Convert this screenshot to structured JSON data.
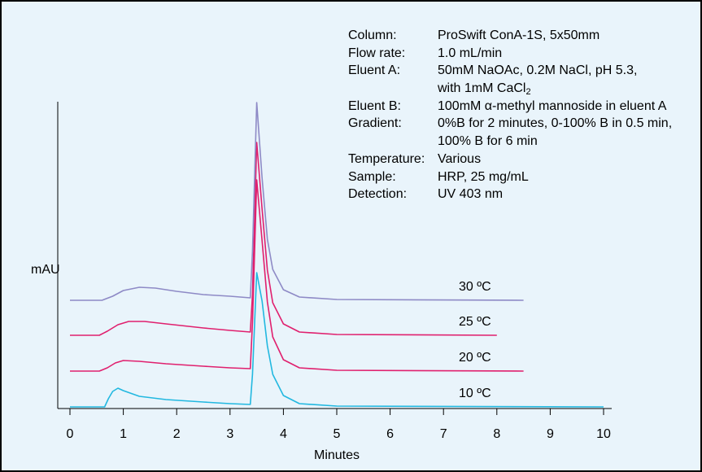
{
  "conditions": {
    "column": {
      "label": "Column:",
      "value": "ProSwift ConA-1S, 5x50mm"
    },
    "flow_rate": {
      "label": "Flow rate:",
      "value": "1.0 mL/min"
    },
    "eluent_a": {
      "label": "Eluent A:",
      "value": "50mM NaOAc, 0.2M NaCl, pH 5.3,",
      "cont": "with 1mM CaCl",
      "cont_sub": "2"
    },
    "eluent_b": {
      "label": "Eluent B:",
      "value": "100mM α-methyl mannoside in eluent A"
    },
    "gradient": {
      "label": "Gradient:",
      "value": "0%B for 2 minutes, 0-100% B in 0.5 min,",
      "cont": "100% B for 6 min"
    },
    "temperature": {
      "label": "Temperature:",
      "value": "Various"
    },
    "sample": {
      "label": "Sample:",
      "value": "HRP, 25 mg/mL"
    },
    "detection": {
      "label": "Detection:",
      "value": "UV 403 nm"
    }
  },
  "chart_data": {
    "type": "line",
    "xlabel": "Minutes",
    "ylabel": "mAU",
    "xlim": [
      0,
      10
    ],
    "x_ticks": [
      0,
      1,
      2,
      3,
      4,
      5,
      6,
      7,
      8,
      9,
      10
    ],
    "grid": false,
    "series": [
      {
        "name": "10 ºC",
        "color": "#22b8e0",
        "offset": 0,
        "x": [
          0,
          0.65,
          0.72,
          0.8,
          0.9,
          1.0,
          1.3,
          1.8,
          2.5,
          3.0,
          3.38,
          3.42,
          3.5,
          3.6,
          3.7,
          3.8,
          4.0,
          4.3,
          5.0,
          10.0
        ],
        "y": [
          0,
          0,
          10,
          19,
          23,
          20,
          13,
          9,
          6,
          4,
          3,
          40,
          165,
          130,
          75,
          40,
          14,
          4,
          1,
          0
        ]
      },
      {
        "name": "20 ºC",
        "color": "#e0206e",
        "offset": 44,
        "x": [
          0,
          0.55,
          0.7,
          0.85,
          1.0,
          1.3,
          1.8,
          2.5,
          3.0,
          3.38,
          3.42,
          3.5,
          3.6,
          3.7,
          3.8,
          4.0,
          4.3,
          5.0,
          8.5
        ],
        "y": [
          0,
          0,
          4,
          10,
          13,
          12,
          9,
          6,
          4,
          3,
          60,
          235,
          160,
          85,
          42,
          14,
          4,
          1,
          0
        ]
      },
      {
        "name": "25 ºC",
        "color": "#e0206e",
        "offset": 88,
        "x": [
          0,
          0.55,
          0.7,
          0.9,
          1.1,
          1.4,
          1.8,
          2.5,
          3.0,
          3.38,
          3.42,
          3.5,
          3.6,
          3.7,
          3.8,
          4.0,
          4.3,
          5.0,
          8.0
        ],
        "y": [
          0,
          0,
          5,
          13,
          17,
          17,
          14,
          9,
          6,
          4,
          50,
          237,
          155,
          80,
          40,
          14,
          4,
          1,
          0
        ]
      },
      {
        "name": "30 ºC",
        "color": "#8e8ac6",
        "offset": 131,
        "x": [
          0,
          0.6,
          0.8,
          1.0,
          1.3,
          1.6,
          2.0,
          2.5,
          3.0,
          3.38,
          3.42,
          3.5,
          3.6,
          3.7,
          3.8,
          4.0,
          4.3,
          5.0,
          8.5
        ],
        "y": [
          0,
          0,
          5,
          12,
          16,
          15,
          11,
          7,
          5,
          3,
          60,
          243,
          150,
          75,
          38,
          13,
          4,
          1,
          0
        ]
      }
    ]
  }
}
